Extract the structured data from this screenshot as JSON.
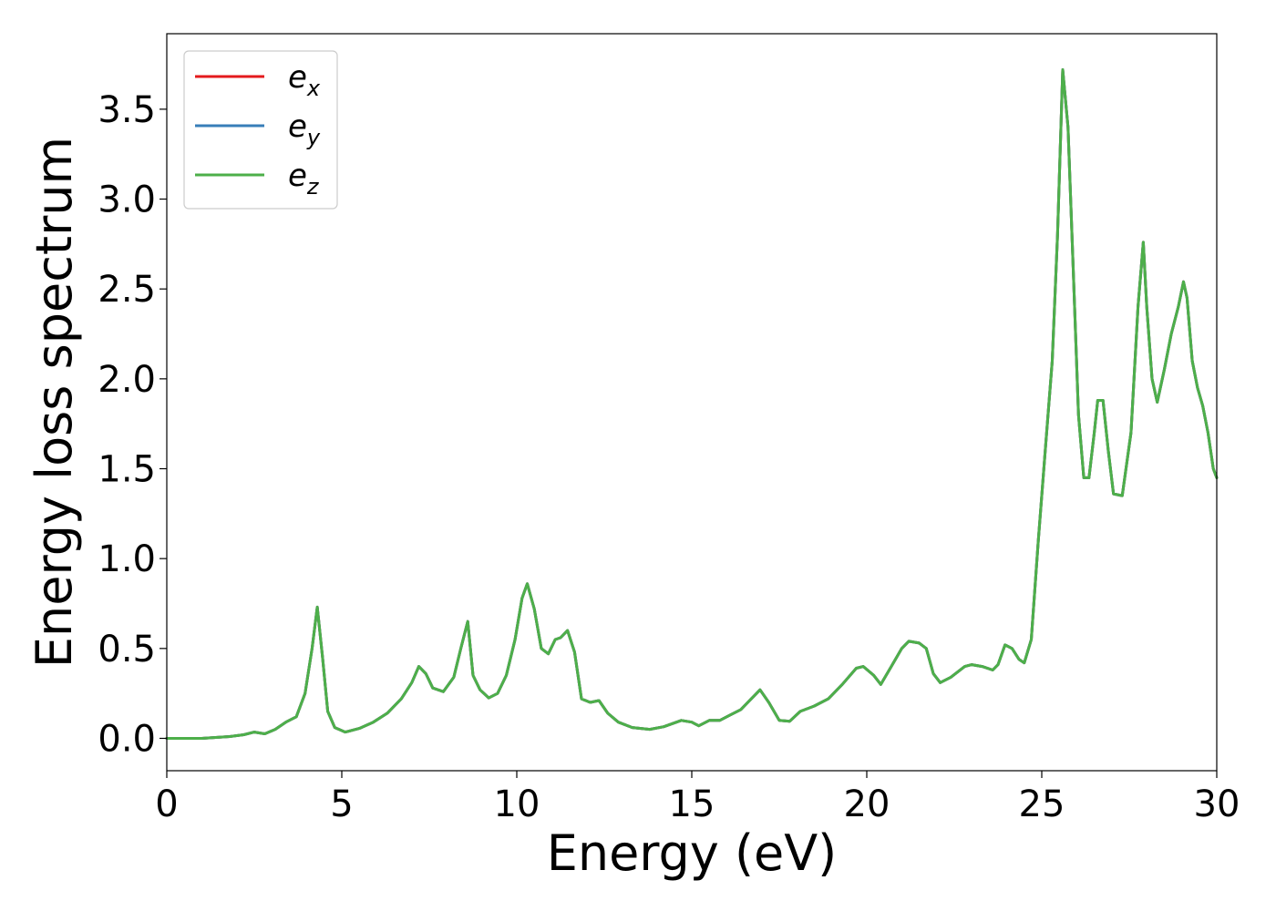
{
  "chart_data": {
    "type": "line",
    "title": "",
    "xlabel": "Energy (eV)",
    "ylabel": "Energy loss spectrum",
    "xlim": [
      0,
      30
    ],
    "ylim": [
      -0.18,
      3.92
    ],
    "xticks": [
      0,
      5,
      10,
      15,
      20,
      25,
      30
    ],
    "xtick_labels": [
      "0",
      "5",
      "10",
      "15",
      "20",
      "25",
      "30"
    ],
    "yticks": [
      0.0,
      0.5,
      1.0,
      1.5,
      2.0,
      2.5,
      3.0,
      3.5
    ],
    "ytick_labels": [
      "0.0",
      "0.5",
      "1.0",
      "1.5",
      "2.0",
      "2.5",
      "3.0",
      "3.5"
    ],
    "grid": false,
    "legend_position": "top-left",
    "x": [
      0,
      1.0,
      1.8,
      2.2,
      2.5,
      2.8,
      3.1,
      3.4,
      3.7,
      3.95,
      4.15,
      4.3,
      4.45,
      4.6,
      4.8,
      5.1,
      5.5,
      5.9,
      6.3,
      6.7,
      7.0,
      7.2,
      7.4,
      7.6,
      7.9,
      8.2,
      8.4,
      8.6,
      8.75,
      8.95,
      9.2,
      9.45,
      9.7,
      9.95,
      10.15,
      10.3,
      10.5,
      10.7,
      10.9,
      11.1,
      11.25,
      11.45,
      11.65,
      11.85,
      12.1,
      12.35,
      12.6,
      12.9,
      13.3,
      13.8,
      14.2,
      14.7,
      15.0,
      15.2,
      15.5,
      15.8,
      16.1,
      16.4,
      16.7,
      16.95,
      17.2,
      17.5,
      17.8,
      18.1,
      18.5,
      18.9,
      19.3,
      19.7,
      19.9,
      20.2,
      20.4,
      20.7,
      21.0,
      21.2,
      21.5,
      21.7,
      21.9,
      22.1,
      22.4,
      22.8,
      23.0,
      23.3,
      23.6,
      23.75,
      23.95,
      24.15,
      24.35,
      24.5,
      24.7,
      24.9,
      25.1,
      25.3,
      25.45,
      25.6,
      25.75,
      25.9,
      26.05,
      26.2,
      26.35,
      26.5,
      26.6,
      26.75,
      26.9,
      27.05,
      27.3,
      27.55,
      27.75,
      27.9,
      28.0,
      28.15,
      28.3,
      28.5,
      28.7,
      28.9,
      29.05,
      29.15,
      29.3,
      29.45,
      29.6,
      29.75,
      29.9,
      30.0
    ],
    "series": [
      {
        "name": "e_x",
        "color": "#e41a1c",
        "values": [
          0.0,
          0.0,
          0.01,
          0.02,
          0.035,
          0.025,
          0.05,
          0.09,
          0.12,
          0.25,
          0.5,
          0.73,
          0.45,
          0.15,
          0.06,
          0.035,
          0.055,
          0.09,
          0.14,
          0.22,
          0.31,
          0.4,
          0.36,
          0.28,
          0.26,
          0.34,
          0.5,
          0.65,
          0.35,
          0.27,
          0.225,
          0.25,
          0.35,
          0.55,
          0.78,
          0.86,
          0.72,
          0.5,
          0.47,
          0.55,
          0.56,
          0.6,
          0.48,
          0.22,
          0.2,
          0.21,
          0.14,
          0.09,
          0.06,
          0.05,
          0.065,
          0.1,
          0.09,
          0.07,
          0.1,
          0.1,
          0.13,
          0.16,
          0.22,
          0.27,
          0.2,
          0.1,
          0.095,
          0.15,
          0.18,
          0.22,
          0.3,
          0.39,
          0.4,
          0.35,
          0.3,
          0.4,
          0.5,
          0.54,
          0.53,
          0.5,
          0.36,
          0.31,
          0.34,
          0.4,
          0.41,
          0.4,
          0.38,
          0.41,
          0.52,
          0.5,
          0.44,
          0.42,
          0.55,
          1.1,
          1.6,
          2.1,
          2.8,
          3.72,
          3.4,
          2.6,
          1.8,
          1.45,
          1.45,
          1.7,
          1.88,
          1.88,
          1.6,
          1.36,
          1.35,
          1.7,
          2.4,
          2.76,
          2.4,
          2.0,
          1.87,
          2.05,
          2.25,
          2.4,
          2.54,
          2.45,
          2.1,
          1.95,
          1.85,
          1.7,
          1.5,
          1.45
        ]
      },
      {
        "name": "e_y",
        "color": "#377eb8",
        "values": [
          0.0,
          0.0,
          0.01,
          0.02,
          0.035,
          0.025,
          0.05,
          0.09,
          0.12,
          0.25,
          0.5,
          0.73,
          0.45,
          0.15,
          0.06,
          0.035,
          0.055,
          0.09,
          0.14,
          0.22,
          0.31,
          0.4,
          0.36,
          0.28,
          0.26,
          0.34,
          0.5,
          0.65,
          0.35,
          0.27,
          0.225,
          0.25,
          0.35,
          0.55,
          0.78,
          0.86,
          0.72,
          0.5,
          0.47,
          0.55,
          0.56,
          0.6,
          0.48,
          0.22,
          0.2,
          0.21,
          0.14,
          0.09,
          0.06,
          0.05,
          0.065,
          0.1,
          0.09,
          0.07,
          0.1,
          0.1,
          0.13,
          0.16,
          0.22,
          0.27,
          0.2,
          0.1,
          0.095,
          0.15,
          0.18,
          0.22,
          0.3,
          0.39,
          0.4,
          0.35,
          0.3,
          0.4,
          0.5,
          0.54,
          0.53,
          0.5,
          0.36,
          0.31,
          0.34,
          0.4,
          0.41,
          0.4,
          0.38,
          0.41,
          0.52,
          0.5,
          0.44,
          0.42,
          0.55,
          1.1,
          1.6,
          2.1,
          2.8,
          3.72,
          3.4,
          2.6,
          1.8,
          1.45,
          1.45,
          1.7,
          1.88,
          1.88,
          1.6,
          1.36,
          1.35,
          1.7,
          2.4,
          2.76,
          2.4,
          2.0,
          1.87,
          2.05,
          2.25,
          2.4,
          2.54,
          2.45,
          2.1,
          1.95,
          1.85,
          1.7,
          1.5,
          1.45
        ]
      },
      {
        "name": "e_z",
        "color": "#4daf4a",
        "values": [
          0.0,
          0.0,
          0.01,
          0.02,
          0.035,
          0.025,
          0.05,
          0.09,
          0.12,
          0.25,
          0.5,
          0.73,
          0.45,
          0.15,
          0.06,
          0.035,
          0.055,
          0.09,
          0.14,
          0.22,
          0.31,
          0.4,
          0.36,
          0.28,
          0.26,
          0.34,
          0.5,
          0.65,
          0.35,
          0.27,
          0.225,
          0.25,
          0.35,
          0.55,
          0.78,
          0.86,
          0.72,
          0.5,
          0.47,
          0.55,
          0.56,
          0.6,
          0.48,
          0.22,
          0.2,
          0.21,
          0.14,
          0.09,
          0.06,
          0.05,
          0.065,
          0.1,
          0.09,
          0.07,
          0.1,
          0.1,
          0.13,
          0.16,
          0.22,
          0.27,
          0.2,
          0.1,
          0.095,
          0.15,
          0.18,
          0.22,
          0.3,
          0.39,
          0.4,
          0.35,
          0.3,
          0.4,
          0.5,
          0.54,
          0.53,
          0.5,
          0.36,
          0.31,
          0.34,
          0.4,
          0.41,
          0.4,
          0.38,
          0.41,
          0.52,
          0.5,
          0.44,
          0.42,
          0.55,
          1.1,
          1.6,
          2.1,
          2.8,
          3.72,
          3.4,
          2.6,
          1.8,
          1.45,
          1.45,
          1.7,
          1.88,
          1.88,
          1.6,
          1.36,
          1.35,
          1.7,
          2.4,
          2.76,
          2.4,
          2.0,
          1.87,
          2.05,
          2.25,
          2.4,
          2.54,
          2.45,
          2.1,
          1.95,
          1.85,
          1.7,
          1.5,
          1.45
        ]
      }
    ],
    "legend": [
      {
        "base": "e",
        "sub": "x",
        "color": "#e41a1c"
      },
      {
        "base": "e",
        "sub": "y",
        "color": "#377eb8"
      },
      {
        "base": "e",
        "sub": "z",
        "color": "#4daf4a"
      }
    ]
  }
}
